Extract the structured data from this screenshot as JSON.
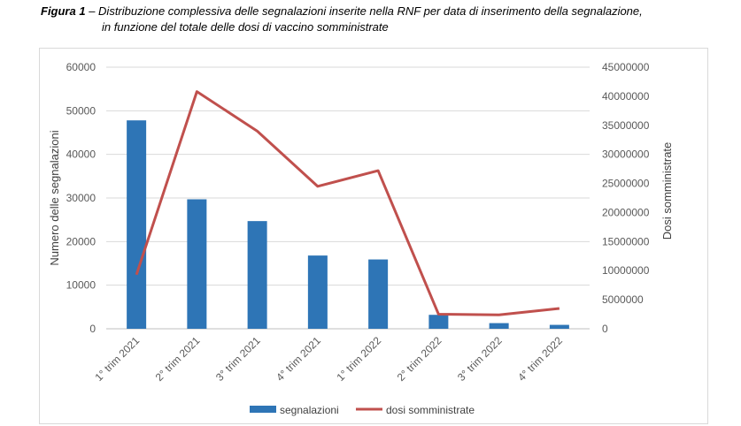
{
  "caption": {
    "label": "Figura 1",
    "separator": " – ",
    "text_line1": "Distribuzione complessiva delle segnalazioni inserite nella RNF per data di inserimento della segnalazione,",
    "text_line2": "in funzione del totale delle dosi di vaccino somministrate"
  },
  "colors": {
    "bars": "#2e75b6",
    "line": "#c0504d",
    "grid": "#d9d9d9"
  },
  "chart_data": {
    "type": "bar",
    "categories": [
      "1° trim 2021",
      "2° trim 2021",
      "3° trim 2021",
      "4° trim 2021",
      "1° trim 2022",
      "2° trim 2022",
      "3° trim 2022",
      "4° trim 2022"
    ],
    "series": [
      {
        "name": "segnalazioni",
        "type": "bar",
        "axis": "left",
        "values": [
          47800,
          29700,
          24700,
          16800,
          15900,
          3200,
          1300,
          900
        ]
      },
      {
        "name": "dosi somministrate",
        "type": "line",
        "axis": "right",
        "values": [
          9300000,
          40800000,
          34000000,
          24500000,
          27200000,
          2500000,
          2400000,
          3500000
        ]
      }
    ],
    "ylabel": "Numero delle segnalazioni",
    "y2label": "Dosi somministrate",
    "ylim": [
      0,
      60000
    ],
    "y2lim": [
      0,
      45000000
    ],
    "yticks": [
      "0",
      "10000",
      "20000",
      "30000",
      "40000",
      "50000",
      "60000"
    ],
    "y2ticks": [
      "0",
      "5000000",
      "10000000",
      "15000000",
      "20000000",
      "25000000",
      "30000000",
      "35000000",
      "40000000",
      "45000000"
    ],
    "grid": true,
    "legend_position": "bottom"
  }
}
